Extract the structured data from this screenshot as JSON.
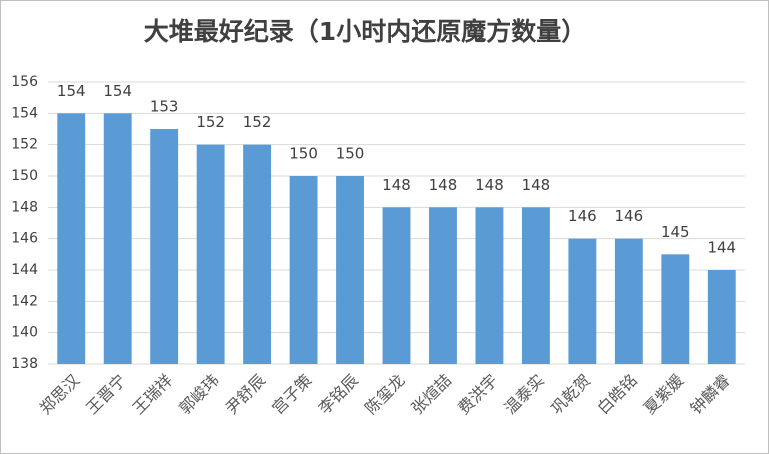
{
  "chart_data": {
    "type": "bar",
    "title": "大堆最好纪录（1小时内还原魔方数量）",
    "categories": [
      "郑思汉",
      "王晋宁",
      "王瑞祥",
      "郭峻玮",
      "尹舒辰",
      "宫子策",
      "李铭辰",
      "陈玺龙",
      "张煊喆",
      "费洪宇",
      "温泰实",
      "巩乾贺",
      "白皓铭",
      "夏紫媛",
      "钟麟睿"
    ],
    "values": [
      154,
      154,
      153,
      152,
      152,
      150,
      150,
      148,
      148,
      148,
      148,
      146,
      146,
      145,
      144
    ],
    "color": "#5b9bd5",
    "ylim": [
      138,
      156
    ],
    "yticks": [
      138,
      140,
      142,
      144,
      146,
      148,
      150,
      152,
      154,
      156
    ],
    "grid": true
  }
}
